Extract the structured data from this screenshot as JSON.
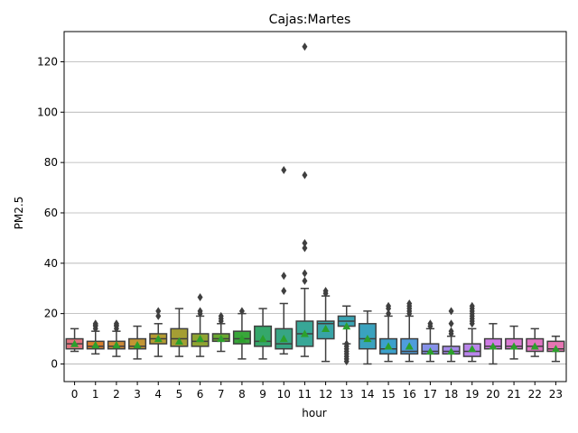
{
  "chart_data": {
    "type": "box",
    "title": "Cajas:Martes",
    "xlabel": "hour",
    "ylabel": "PM2.5",
    "ylim": [
      -7,
      132
    ],
    "yticks": [
      0,
      20,
      40,
      60,
      80,
      100,
      120
    ],
    "grid": "horizontal",
    "categories": [
      "0",
      "1",
      "2",
      "3",
      "4",
      "5",
      "6",
      "7",
      "8",
      "9",
      "10",
      "11",
      "12",
      "13",
      "14",
      "15",
      "16",
      "17",
      "18",
      "19",
      "20",
      "21",
      "22",
      "23"
    ],
    "boxes": [
      {
        "hour": "0",
        "color": "#e1737d",
        "whislo": 5,
        "q1": 6,
        "med": 8,
        "q3": 10,
        "whishi": 14,
        "mean": 8,
        "fliers": []
      },
      {
        "hour": "1",
        "color": "#da7f2c",
        "whislo": 4,
        "q1": 6,
        "med": 7,
        "q3": 9,
        "whishi": 13,
        "mean": 7.5,
        "fliers": [
          14,
          15,
          15.5,
          16
        ]
      },
      {
        "hour": "2",
        "color": "#cd8a37",
        "whislo": 3,
        "q1": 6,
        "med": 7,
        "q3": 9,
        "whishi": 13,
        "mean": 7.5,
        "fliers": [
          14,
          15,
          15.5,
          16
        ]
      },
      {
        "hour": "3",
        "color": "#c39533",
        "whislo": 2,
        "q1": 6,
        "med": 7,
        "q3": 10,
        "whishi": 15,
        "mean": 7.5,
        "fliers": []
      },
      {
        "hour": "4",
        "color": "#b49b31",
        "whislo": 3,
        "q1": 8,
        "med": 10,
        "q3": 12,
        "whishi": 16,
        "mean": 10,
        "fliers": [
          19,
          21
        ]
      },
      {
        "hour": "5",
        "color": "#a59e34",
        "whislo": 3,
        "q1": 7,
        "med": 10,
        "q3": 14,
        "whishi": 22,
        "mean": 9,
        "fliers": []
      },
      {
        "hour": "6",
        "color": "#8fa331",
        "whislo": 3,
        "q1": 7,
        "med": 9,
        "q3": 12,
        "whishi": 19,
        "mean": 10,
        "fliers": [
          20,
          21,
          26.5
        ]
      },
      {
        "hour": "7",
        "color": "#6aa730",
        "whislo": 5,
        "q1": 9,
        "med": 10,
        "q3": 12,
        "whishi": 16,
        "mean": 10,
        "fliers": [
          17,
          18,
          19
        ]
      },
      {
        "hour": "8",
        "color": "#39a63a",
        "whislo": 2,
        "q1": 8,
        "med": 10,
        "q3": 13,
        "whishi": 20,
        "mean": 10,
        "fliers": [
          21
        ]
      },
      {
        "hour": "9",
        "color": "#35a76b",
        "whislo": 2,
        "q1": 7,
        "med": 9,
        "q3": 15,
        "whishi": 22,
        "mean": 10,
        "fliers": []
      },
      {
        "hour": "10",
        "color": "#37a584",
        "whislo": 4,
        "q1": 6,
        "med": 8,
        "q3": 14,
        "whishi": 24,
        "mean": 10,
        "fliers": [
          29,
          35,
          77
        ]
      },
      {
        "hour": "11",
        "color": "#38a797",
        "whislo": 3,
        "q1": 7,
        "med": 12,
        "q3": 17,
        "whishi": 30,
        "mean": 12,
        "fliers": [
          33,
          36,
          46,
          48,
          75,
          126
        ]
      },
      {
        "hour": "12",
        "color": "#38a4a7",
        "whislo": 1,
        "q1": 10,
        "med": 16,
        "q3": 17,
        "whishi": 27,
        "mean": 14,
        "fliers": [
          28,
          29
        ]
      },
      {
        "hour": "13",
        "color": "#39a4b3",
        "whislo": 8,
        "q1": 15,
        "med": 17,
        "q3": 19,
        "whishi": 23,
        "mean": 15,
        "fliers": [
          1,
          2,
          3,
          4,
          5,
          6,
          7,
          8
        ]
      },
      {
        "hour": "14",
        "color": "#3aa2be",
        "whislo": 0,
        "q1": 6,
        "med": 10,
        "q3": 16,
        "whishi": 21,
        "mean": 10,
        "fliers": []
      },
      {
        "hour": "15",
        "color": "#3ca0cc",
        "whislo": 1,
        "q1": 4,
        "med": 6,
        "q3": 10,
        "whishi": 19,
        "mean": 7,
        "fliers": [
          20,
          22,
          23
        ]
      },
      {
        "hour": "16",
        "color": "#4f9ddc",
        "whislo": 1,
        "q1": 4,
        "med": 5,
        "q3": 10,
        "whishi": 19,
        "mean": 7,
        "fliers": [
          20,
          21,
          22,
          23,
          24
        ]
      },
      {
        "hour": "17",
        "color": "#8591e8",
        "whislo": 1,
        "q1": 4,
        "med": 5,
        "q3": 8,
        "whishi": 14,
        "mean": 5,
        "fliers": [
          15,
          16
        ]
      },
      {
        "hour": "18",
        "color": "#a58aea",
        "whislo": 1,
        "q1": 4,
        "med": 5,
        "q3": 7,
        "whishi": 11,
        "mean": 5,
        "fliers": [
          12,
          13,
          16,
          21
        ]
      },
      {
        "hour": "19",
        "color": "#b985eb",
        "whislo": 1,
        "q1": 3,
        "med": 5,
        "q3": 8,
        "whishi": 14,
        "mean": 6,
        "fliers": [
          16,
          17,
          18,
          19,
          20,
          21,
          22,
          23
        ]
      },
      {
        "hour": "20",
        "color": "#d07be6",
        "whislo": 0,
        "q1": 6,
        "med": 7,
        "q3": 10,
        "whishi": 16,
        "mean": 7,
        "fliers": []
      },
      {
        "hour": "21",
        "color": "#dc79d4",
        "whislo": 2,
        "q1": 6,
        "med": 7,
        "q3": 10,
        "whishi": 15,
        "mean": 7,
        "fliers": []
      },
      {
        "hour": "22",
        "color": "#e174c3",
        "whislo": 3,
        "q1": 5,
        "med": 7,
        "q3": 10,
        "whishi": 14,
        "mean": 7,
        "fliers": []
      },
      {
        "hour": "23",
        "color": "#e675b2",
        "whislo": 1,
        "q1": 5,
        "med": 6,
        "q3": 9,
        "whishi": 11,
        "mean": 6,
        "fliers": []
      }
    ],
    "colors": {
      "outline": "#3f3f3f",
      "grid": "#b0b0b0",
      "mean_marker": "#2ca02c",
      "axis": "#000000"
    }
  }
}
